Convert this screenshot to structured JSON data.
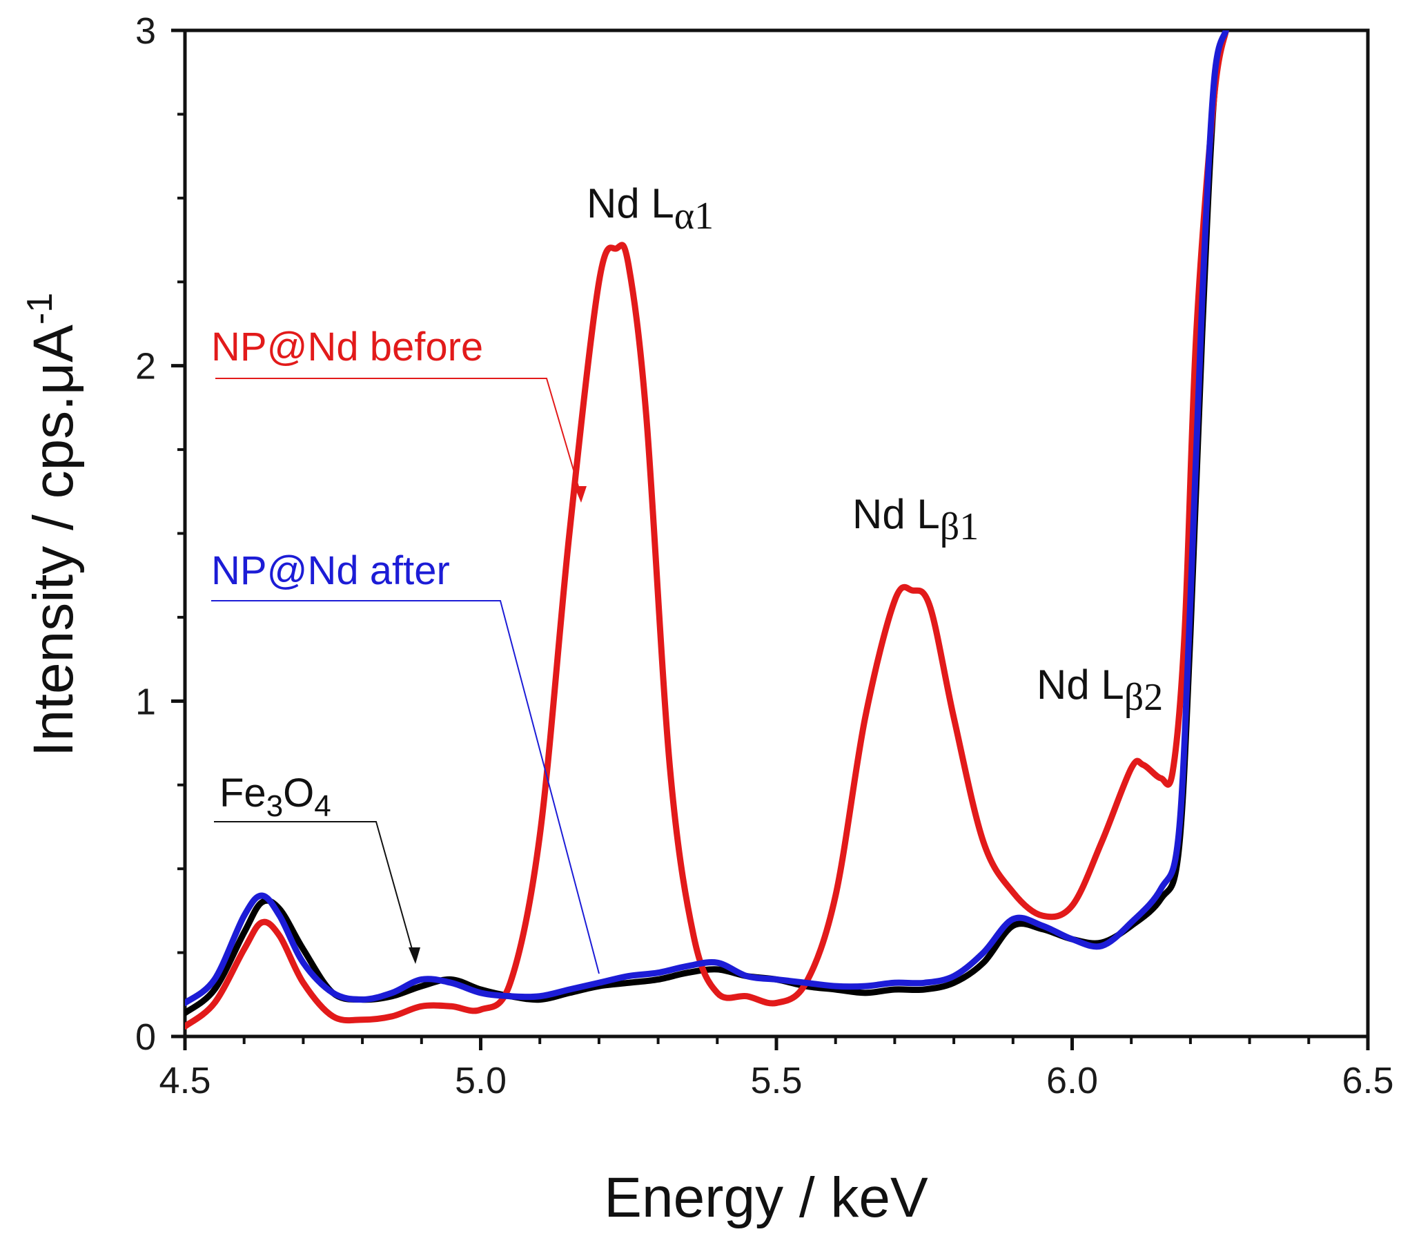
{
  "chart_data": {
    "type": "line",
    "xlabel": "Energy / keV",
    "ylabel": "Intensity / cps.μA",
    "ylabel_sup": "-1",
    "xlim": [
      4.5,
      6.5
    ],
    "ylim": [
      0,
      3
    ],
    "xticks": [
      "4.5",
      "5.0",
      "5.5",
      "6.0",
      "6.5"
    ],
    "xtick_values": [
      4.5,
      5.0,
      5.5,
      6.0,
      6.5
    ],
    "yticks": [
      "0",
      "1",
      "2",
      "3"
    ],
    "ytick_values": [
      0,
      1,
      2,
      3
    ],
    "grid": false,
    "series": [
      {
        "name": "Fe3O4",
        "label_main": "Fe",
        "label_sub1": "3",
        "label_mid": "O",
        "label_sub2": "4",
        "color": "#000000",
        "x": [
          4.5,
          4.55,
          4.6,
          4.63,
          4.66,
          4.7,
          4.75,
          4.8,
          4.85,
          4.9,
          4.95,
          5.0,
          5.05,
          5.1,
          5.15,
          5.2,
          5.25,
          5.3,
          5.35,
          5.4,
          5.45,
          5.5,
          5.55,
          5.6,
          5.65,
          5.7,
          5.75,
          5.8,
          5.85,
          5.9,
          5.95,
          6.0,
          6.05,
          6.1,
          6.15,
          6.18,
          6.2,
          6.22,
          6.24,
          6.26
        ],
        "y": [
          0.07,
          0.14,
          0.31,
          0.4,
          0.38,
          0.26,
          0.13,
          0.11,
          0.12,
          0.15,
          0.17,
          0.14,
          0.12,
          0.11,
          0.13,
          0.15,
          0.16,
          0.17,
          0.19,
          0.2,
          0.18,
          0.17,
          0.15,
          0.14,
          0.13,
          0.14,
          0.14,
          0.16,
          0.22,
          0.33,
          0.32,
          0.29,
          0.28,
          0.33,
          0.41,
          0.55,
          1.2,
          2.1,
          2.8,
          3.0
        ]
      },
      {
        "name": "NP@Nd before",
        "color": "#e21a1a",
        "x": [
          4.5,
          4.55,
          4.6,
          4.63,
          4.66,
          4.7,
          4.75,
          4.8,
          4.85,
          4.9,
          4.95,
          5.0,
          5.05,
          5.1,
          5.15,
          5.2,
          5.23,
          5.25,
          5.28,
          5.32,
          5.36,
          5.4,
          5.45,
          5.5,
          5.55,
          5.6,
          5.65,
          5.7,
          5.73,
          5.76,
          5.8,
          5.85,
          5.9,
          5.95,
          6.0,
          6.05,
          6.1,
          6.12,
          6.15,
          6.17,
          6.19,
          6.21,
          6.24,
          6.26
        ],
        "y": [
          0.03,
          0.1,
          0.26,
          0.34,
          0.3,
          0.16,
          0.06,
          0.05,
          0.06,
          0.09,
          0.09,
          0.08,
          0.16,
          0.6,
          1.5,
          2.25,
          2.35,
          2.3,
          1.85,
          0.8,
          0.3,
          0.13,
          0.12,
          0.1,
          0.16,
          0.42,
          0.95,
          1.3,
          1.33,
          1.28,
          0.95,
          0.58,
          0.43,
          0.36,
          0.39,
          0.58,
          0.8,
          0.81,
          0.77,
          0.79,
          1.2,
          2.1,
          2.8,
          3.0
        ]
      },
      {
        "name": "NP@Nd after",
        "color": "#1c1cd6",
        "x": [
          4.5,
          4.55,
          4.6,
          4.63,
          4.66,
          4.7,
          4.75,
          4.8,
          4.85,
          4.9,
          4.95,
          5.0,
          5.05,
          5.1,
          5.15,
          5.2,
          5.25,
          5.3,
          5.35,
          5.4,
          5.45,
          5.5,
          5.55,
          5.6,
          5.65,
          5.7,
          5.75,
          5.8,
          5.85,
          5.9,
          5.95,
          6.0,
          6.05,
          6.1,
          6.15,
          6.18,
          6.2,
          6.22,
          6.24,
          6.26
        ],
        "y": [
          0.1,
          0.17,
          0.36,
          0.42,
          0.36,
          0.22,
          0.13,
          0.11,
          0.13,
          0.17,
          0.16,
          0.13,
          0.12,
          0.12,
          0.14,
          0.16,
          0.18,
          0.19,
          0.21,
          0.22,
          0.18,
          0.17,
          0.16,
          0.15,
          0.15,
          0.16,
          0.16,
          0.18,
          0.25,
          0.35,
          0.33,
          0.29,
          0.27,
          0.34,
          0.44,
          0.6,
          1.3,
          2.2,
          2.85,
          3.0
        ]
      }
    ],
    "annotations": [
      {
        "text": "Nd L",
        "sub": "α1",
        "x": 5.24,
        "y": 2.43
      },
      {
        "text": "Nd L",
        "sub": "β1",
        "x": 5.7,
        "y": 1.55
      },
      {
        "text": "Nd L",
        "sub": "β2",
        "x": 6.06,
        "y": 1.03
      }
    ]
  }
}
